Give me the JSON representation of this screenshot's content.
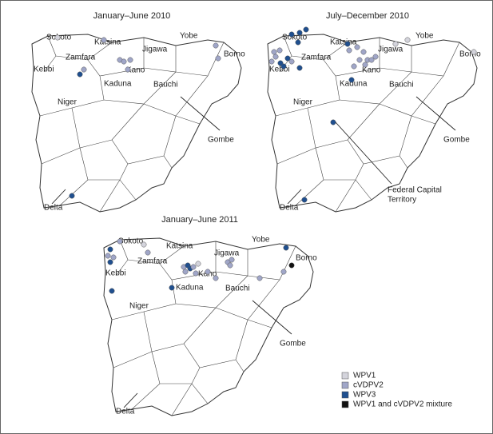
{
  "maps": [
    {
      "title": "January–June 2010",
      "labels": [
        "Sokoto",
        "Katsina",
        "Yobe",
        "Zamfara",
        "Jigawa",
        "Borno",
        "Kebbi",
        "Kano",
        "Kaduna",
        "Bauchi",
        "Niger",
        "Gombe",
        "Delta"
      ]
    },
    {
      "title": "July–December 2010",
      "labels": [
        "Sokoto",
        "Katsina",
        "Yobe",
        "Zamfara",
        "Jigawa",
        "Borno",
        "Kebbi",
        "Kano",
        "Kaduna",
        "Bauchi",
        "Niger",
        "Gombe",
        "Delta"
      ],
      "fct_lines": [
        "Federal Capital",
        "Territory"
      ]
    },
    {
      "title": "January–June 2011",
      "labels": [
        "Sokoto",
        "Katsina",
        "Yobe",
        "Zamfara",
        "Jigawa",
        "Borno",
        "Kebbi",
        "Kano",
        "Kaduna",
        "Bauchi",
        "Niger",
        "Gombe",
        "Delta"
      ]
    }
  ],
  "legend": [
    "WPV1",
    "cVDPV2",
    "WPV3",
    "WPV1 and cVDPV2 mixture"
  ]
}
